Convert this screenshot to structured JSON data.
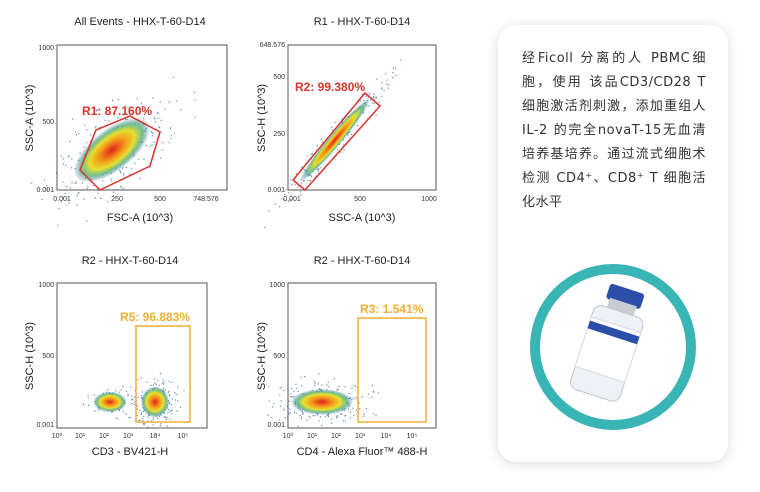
{
  "plots": [
    {
      "title": "All Events - HHX-T-60-D14",
      "x_label": "FSC-A (10^3)",
      "y_label": "SSC-A (10^3)",
      "x_ticks": [
        "0.001",
        "250",
        "500",
        "748.576"
      ],
      "y_ticks": [
        "1000",
        "500",
        "0.001"
      ],
      "gate_label": "R1: 87.160%"
    },
    {
      "title": "R1 - HHX-T-60-D14",
      "x_label": "SSC-A (10^3)",
      "y_label": "SSC-H (10^3)",
      "x_ticks": [
        "0.001",
        "500",
        "1000"
      ],
      "y_ticks": [
        "648.576",
        "500",
        "250",
        "0.001"
      ],
      "gate_label": "R2: 99.380%"
    },
    {
      "title": "R2 - HHX-T-60-D14",
      "x_label": "CD3 - BV421-H",
      "y_label": "SSC-H (10^3)",
      "x_ticks": [
        "10⁰",
        "10¹",
        "10²",
        "10³",
        "10⁴",
        "10⁵"
      ],
      "y_ticks": [
        "1000",
        "500",
        "0.001"
      ],
      "gate_label": "R5: 96.883%"
    },
    {
      "title": "R2 - HHX-T-60-D14",
      "x_label": "CD4 - Alexa Fluor™ 488-H",
      "y_label": "SSC-H (10^3)",
      "x_ticks": [
        "10⁰",
        "10¹",
        "10²",
        "10³",
        "10⁴",
        "10⁵"
      ],
      "y_ticks": [
        "1000",
        "500",
        "0.001"
      ],
      "gate_label": "R3: 1.541%"
    }
  ],
  "card": {
    "text": "经Ficoll 分离的人 PBMC细胞，使用 该品CD3/CD28 T 细胞激活剂刺激，添加重组人 IL-2 的完全novaT-15无血清培养基培养。通过流式细胞术检测 CD4⁺、CD8⁺ T 细胞活化水平"
  }
}
